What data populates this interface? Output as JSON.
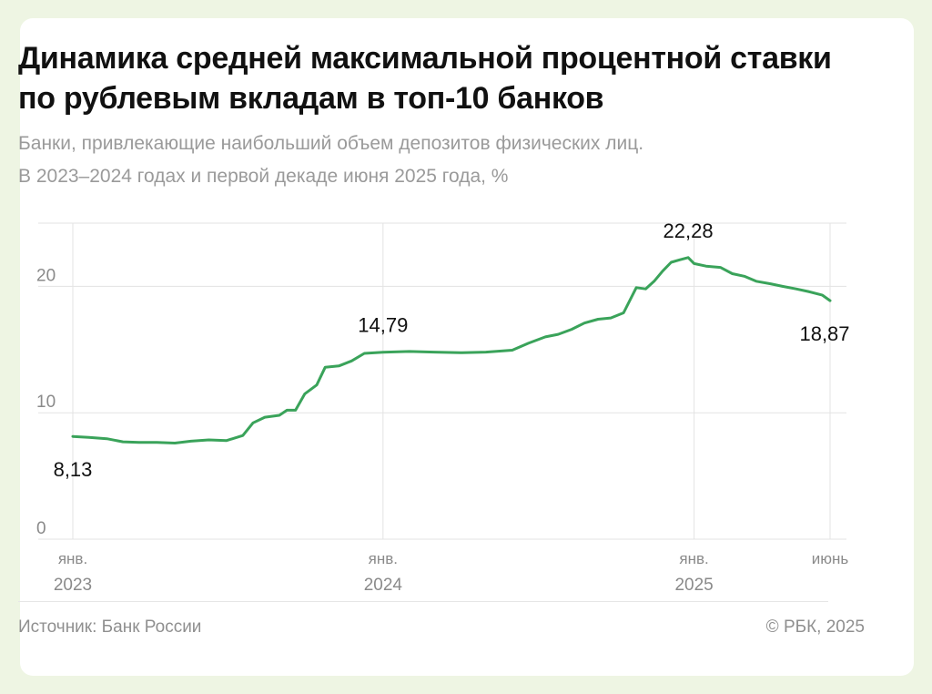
{
  "title": "Динамика средней максимальной процентной ставки по рублевым вкладам в топ-10 банков",
  "subtitle_line1": "Банки, привлекающие наибольший объем депозитов физических лиц.",
  "subtitle_line2": "В 2023–2024 годах и первой декаде июня 2025 года, %",
  "source": "Источник: Банк России",
  "copyright": "© РБК, 2025",
  "colors": {
    "line": "#3aa35a",
    "grid": "#e3e3e3",
    "tick_text": "#8a8a8a",
    "label_text": "#111111",
    "background": "#eef5e3"
  },
  "chart_data": {
    "type": "line",
    "ylim": [
      0,
      25
    ],
    "y_ticks": [
      "0",
      "10",
      "20"
    ],
    "x_ticks": [
      {
        "line1": "янв.",
        "line2": "2023"
      },
      {
        "line1": "янв.",
        "line2": "2024"
      },
      {
        "line1": "янв.",
        "line2": "2025"
      },
      {
        "line1": "июнь",
        "line2": ""
      }
    ],
    "x_tick_dates": [
      "2023-01-01",
      "2024-01-01",
      "2025-01-01",
      "2025-06-10"
    ],
    "grid": true,
    "series": [
      {
        "points": [
          [
            "2023-01-01",
            8.13
          ],
          [
            "2023-01-20",
            8.05
          ],
          [
            "2023-02-10",
            7.95
          ],
          [
            "2023-03-01",
            7.7
          ],
          [
            "2023-03-20",
            7.65
          ],
          [
            "2023-04-10",
            7.65
          ],
          [
            "2023-05-01",
            7.6
          ],
          [
            "2023-05-20",
            7.75
          ],
          [
            "2023-06-10",
            7.85
          ],
          [
            "2023-07-01",
            7.8
          ],
          [
            "2023-07-20",
            8.2
          ],
          [
            "2023-08-01",
            9.2
          ],
          [
            "2023-08-15",
            9.65
          ],
          [
            "2023-09-01",
            9.8
          ],
          [
            "2023-09-10",
            10.2
          ],
          [
            "2023-09-20",
            10.2
          ],
          [
            "2023-10-01",
            11.5
          ],
          [
            "2023-10-15",
            12.2
          ],
          [
            "2023-10-25",
            13.6
          ],
          [
            "2023-11-10",
            13.7
          ],
          [
            "2023-11-25",
            14.1
          ],
          [
            "2023-12-10",
            14.7
          ],
          [
            "2024-01-01",
            14.79
          ],
          [
            "2024-02-01",
            14.85
          ],
          [
            "2024-03-01",
            14.8
          ],
          [
            "2024-04-01",
            14.75
          ],
          [
            "2024-05-01",
            14.8
          ],
          [
            "2024-06-01",
            14.95
          ],
          [
            "2024-06-20",
            15.5
          ],
          [
            "2024-07-10",
            16.0
          ],
          [
            "2024-07-25",
            16.2
          ],
          [
            "2024-08-10",
            16.6
          ],
          [
            "2024-08-25",
            17.1
          ],
          [
            "2024-09-10",
            17.4
          ],
          [
            "2024-09-25",
            17.5
          ],
          [
            "2024-10-10",
            17.9
          ],
          [
            "2024-10-25",
            19.9
          ],
          [
            "2024-11-05",
            19.8
          ],
          [
            "2024-11-15",
            20.4
          ],
          [
            "2024-11-25",
            21.2
          ],
          [
            "2024-12-05",
            21.9
          ],
          [
            "2024-12-15",
            22.1
          ],
          [
            "2024-12-25",
            22.28
          ],
          [
            "2025-01-01",
            21.8
          ],
          [
            "2025-01-15",
            21.6
          ],
          [
            "2025-02-01",
            21.5
          ],
          [
            "2025-02-15",
            21.0
          ],
          [
            "2025-03-01",
            20.8
          ],
          [
            "2025-03-15",
            20.4
          ],
          [
            "2025-04-01",
            20.2
          ],
          [
            "2025-04-15",
            20.0
          ],
          [
            "2025-05-01",
            19.8
          ],
          [
            "2025-05-15",
            19.6
          ],
          [
            "2025-06-01",
            19.3
          ],
          [
            "2025-06-10",
            18.87
          ]
        ]
      }
    ],
    "annotations": [
      {
        "text": "8,13",
        "date": "2023-01-01",
        "value": 8.13,
        "position": "below"
      },
      {
        "text": "14,79",
        "date": "2024-01-01",
        "value": 14.79,
        "position": "above"
      },
      {
        "text": "22,28",
        "date": "2024-12-25",
        "value": 22.28,
        "position": "above"
      },
      {
        "text": "18,87",
        "date": "2025-06-10",
        "value": 18.87,
        "position": "below"
      }
    ]
  }
}
